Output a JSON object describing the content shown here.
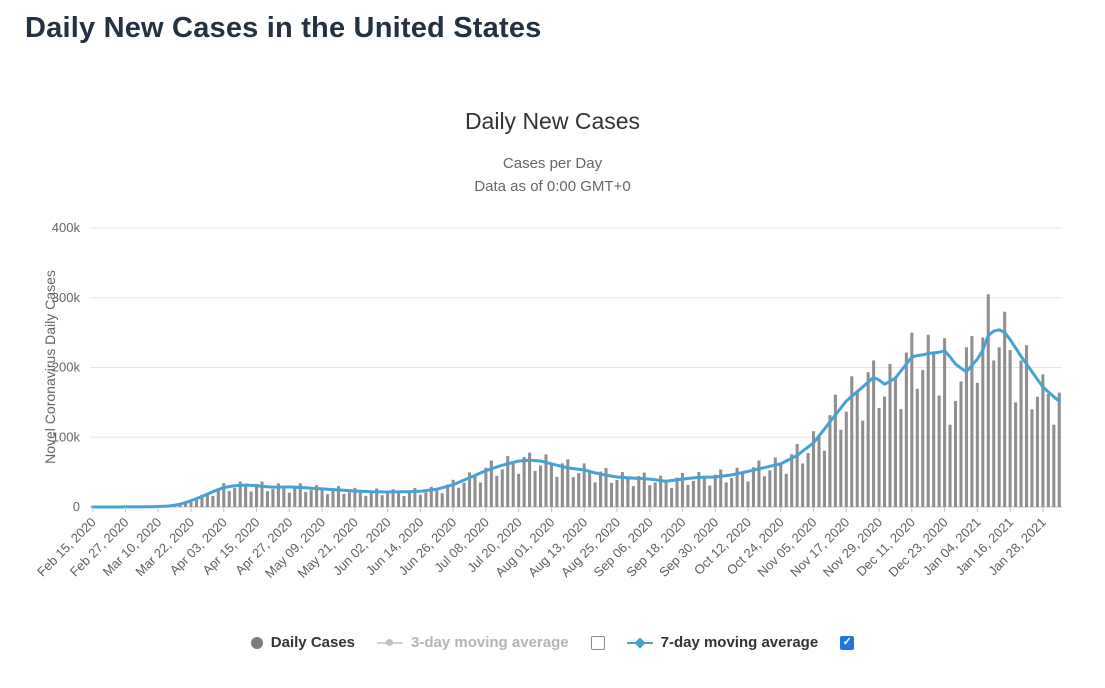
{
  "page": {
    "title": "Daily New Cases in the United States"
  },
  "chart": {
    "title": "Daily New Cases",
    "subtitle_line1": "Cases per Day",
    "subtitle_line2": "Data as of 0:00 GMT+0",
    "y_axis_title": "Novel Coronavirus Daily Cases"
  },
  "legend": {
    "daily_cases_label": "Daily Cases",
    "avg3_label": "3-day moving average",
    "avg7_label": "7-day moving average",
    "avg3_checkbox_checked": false,
    "avg7_checkbox_checked": true
  },
  "colors": {
    "bar": "#8f8f8f",
    "line": "#46a2d2",
    "grid": "#e6e6e6",
    "axis": "#c6c6c6",
    "checkbox_checked": "#2176dd"
  },
  "chart_data": {
    "type": "combo",
    "title": "Daily New Cases",
    "x_start": "Feb 15, 2020",
    "x_end": "Feb 03, 2021",
    "sample_interval_days": 2,
    "values_unit": "thousands of cases",
    "ylim_thousands": [
      0,
      400
    ],
    "grid": true,
    "legend_position": "bottom",
    "y_tick_labels": [
      "0",
      "100k",
      "200k",
      "300k",
      "400k"
    ],
    "x_tick_labels": [
      "Feb 15, 2020",
      "Feb 27, 2020",
      "Mar 10, 2020",
      "Mar 22, 2020",
      "Apr 03, 2020",
      "Apr 15, 2020",
      "Apr 27, 2020",
      "May 09, 2020",
      "May 21, 2020",
      "Jun 02, 2020",
      "Jun 14, 2020",
      "Jun 26, 2020",
      "Jul 08, 2020",
      "Jul 20, 2020",
      "Aug 01, 2020",
      "Aug 13, 2020",
      "Aug 25, 2020",
      "Sep 06, 2020",
      "Sep 18, 2020",
      "Sep 30, 2020",
      "Oct 12, 2020",
      "Oct 24, 2020",
      "Nov 05, 2020",
      "Nov 17, 2020",
      "Nov 29, 2020",
      "Dec 11, 2020",
      "Dec 23, 2020",
      "Jan 04, 2021",
      "Jan 16, 2021",
      "Jan 28, 2021"
    ],
    "x_tick_every_n_samples": 6,
    "series": [
      {
        "name": "Daily Cases",
        "type": "bar",
        "color": "#8f8f8f",
        "values_thousands": [
          0.03,
          0.02,
          0.03,
          0.04,
          0.02,
          0.03,
          0.09,
          0.1,
          0.11,
          0.22,
          0.37,
          0.39,
          0.63,
          1.2,
          1.5,
          1.9,
          4.3,
          7.7,
          7,
          10.8,
          17.7,
          18.5,
          15.8,
          27,
          34.2,
          22.9,
          27.5,
          36.6,
          31.5,
          22.3,
          32.9,
          36.4,
          22.7,
          25.7,
          33.7,
          28.7,
          20.7,
          30.7,
          34,
          21.5,
          24.3,
          31.3,
          26,
          18.4,
          27,
          29.9,
          18.7,
          21.2,
          27.1,
          22.6,
          16,
          23.5,
          26.5,
          16.8,
          19.4,
          25.5,
          21.7,
          15.7,
          23.8,
          27.2,
          17.6,
          21.2,
          28.9,
          25.5,
          19.8,
          32.2,
          39,
          27.5,
          34.8,
          49.6,
          45.3,
          35.1,
          56.2,
          66.7,
          44.7,
          54,
          73.2,
          64,
          47.5,
          71.8,
          78,
          51.9,
          59.4,
          75.5,
          62,
          43.2,
          62.6,
          68.3,
          42.9,
          48.6,
          62.5,
          51,
          35.3,
          50.8,
          55.8,
          34.6,
          38.7,
          50.2,
          42,
          29.9,
          44.3,
          49.4,
          31.2,
          35.1,
          44.8,
          37,
          27.4,
          42.1,
          48.8,
          31.8,
          37.5,
          50.2,
          42.7,
          30.8,
          46.4,
          53.7,
          35.1,
          41.4,
          56.3,
          49.3,
          36.7,
          57,
          66.7,
          44.1,
          52.5,
          71,
          62,
          47.5,
          75.6,
          90.3,
          62.4,
          77.4,
          108.6,
          102,
          80.6,
          131.8,
          161,
          110.8,
          136.8,
          187.3,
          165.3,
          123.8,
          193.3,
          210,
          142,
          158.4,
          205,
          185,
          140.4,
          221.4,
          250,
          169.3,
          196.2,
          247,
          221,
          159.8,
          241.9,
          118,
          152,
          180,
          229,
          245,
          178,
          243,
          305,
          210,
          229,
          280,
          225,
          150,
          210,
          232,
          140,
          158,
          190,
          162,
          118,
          164
        ]
      },
      {
        "name": "7-day moving average",
        "type": "line",
        "color": "#46a2d2",
        "values_thousands": [
          0.03,
          0.03,
          0.03,
          0.03,
          0.03,
          0.03,
          0.08,
          0.1,
          0.15,
          0.2,
          0.3,
          0.5,
          0.7,
          1,
          1.5,
          2.6,
          4,
          6.3,
          9,
          12,
          15,
          18.5,
          22,
          25,
          28,
          29.3,
          30.5,
          31,
          31.5,
          31,
          30.5,
          29.8,
          29.1,
          28.5,
          28.6,
          28.7,
          28.8,
          28.4,
          27.9,
          27.5,
          27,
          26.5,
          26,
          25.5,
          25,
          24.5,
          24,
          23.5,
          23,
          22.6,
          22.2,
          21.8,
          21.7,
          21.6,
          21.5,
          21.6,
          21.7,
          21.8,
          22,
          22.3,
          22.5,
          23.5,
          24.5,
          25.5,
          27.5,
          29.8,
          32,
          35.3,
          38.7,
          42,
          45.3,
          48.7,
          52,
          54.7,
          57.3,
          60,
          62,
          64,
          66,
          66.5,
          67,
          66.5,
          66,
          64,
          62,
          60,
          58,
          56,
          55,
          54,
          53,
          51,
          49,
          47,
          45.7,
          44.3,
          43,
          42.5,
          42,
          41.5,
          41,
          40.5,
          40,
          39,
          38,
          37,
          38,
          39,
          40,
          40.8,
          41.7,
          42.5,
          42.7,
          42.8,
          43,
          44,
          45,
          46,
          47.7,
          49.3,
          51,
          52.8,
          54.7,
          56.5,
          58.3,
          60.2,
          62,
          66,
          70,
          74,
          80,
          86,
          92,
          102,
          112,
          122,
          132,
          142,
          152,
          158.7,
          165.3,
          172,
          179,
          186,
          182,
          176,
          180,
          185,
          195,
          205,
          215,
          217,
          218,
          220,
          221,
          222,
          224,
          215,
          205,
          199,
          194,
          203,
          212,
          225,
          246,
          252,
          254,
          250,
          240,
          228,
          216,
          205,
          194,
          183,
          172,
          165,
          158,
          152
        ]
      },
      {
        "name": "3-day moving average",
        "type": "line",
        "hidden": true
      }
    ]
  }
}
